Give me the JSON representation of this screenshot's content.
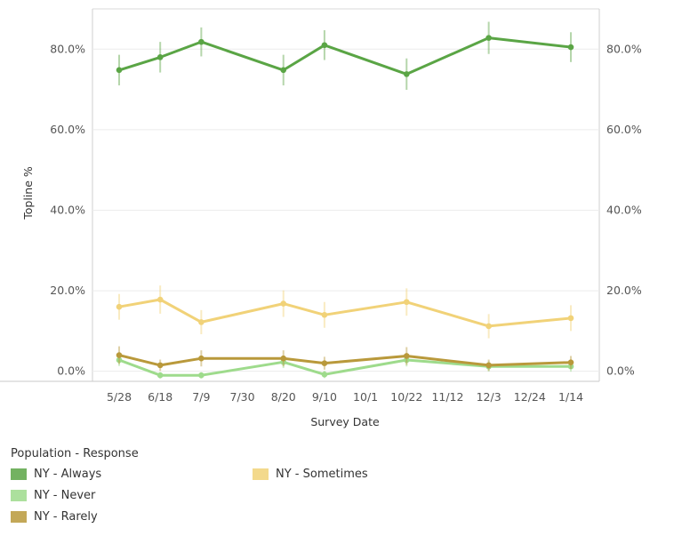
{
  "chart_data": {
    "type": "line",
    "x": [
      "5/28",
      "6/18",
      "7/9",
      "7/30",
      "8/20",
      "9/10",
      "10/1",
      "10/22",
      "11/12",
      "12/3",
      "12/24",
      "1/14"
    ],
    "xlabel": "Survey Date",
    "ylabel": "Topline %",
    "ylim": [
      -2.5,
      90
    ],
    "yticks": [
      0,
      20,
      40,
      60,
      80
    ],
    "ytick_labels": [
      "0.0%",
      "20.0%",
      "40.0%",
      "60.0%",
      "80.0%"
    ],
    "grid": true,
    "legend_title": "Population - Response",
    "legend_position": "bottom",
    "series": [
      {
        "name": "NY - Always",
        "color": "#5aa545",
        "points": [
          {
            "x": "5/28",
            "y": 74.8,
            "err": 3.8
          },
          {
            "x": "6/18",
            "y": 78.0,
            "err": 3.8
          },
          {
            "x": "7/9",
            "y": 81.8,
            "err": 3.6
          },
          {
            "x": "8/20",
            "y": 74.8,
            "err": 3.8
          },
          {
            "x": "9/10",
            "y": 81.0,
            "err": 3.7
          },
          {
            "x": "10/22",
            "y": 73.8,
            "err": 3.9
          },
          {
            "x": "12/3",
            "y": 82.8,
            "err": 4.0
          },
          {
            "x": "1/14",
            "y": 80.5,
            "err": 3.7
          }
        ]
      },
      {
        "name": "NY - Never",
        "color": "#9edb8c",
        "points": [
          {
            "x": "5/28",
            "y": 2.8,
            "err": 1.5
          },
          {
            "x": "6/18",
            "y": -1.0,
            "err": 0.8
          },
          {
            "x": "7/9",
            "y": -1.0,
            "err": 0.8
          },
          {
            "x": "8/20",
            "y": 2.3,
            "err": 1.5
          },
          {
            "x": "9/10",
            "y": -0.8,
            "err": 0.9
          },
          {
            "x": "10/22",
            "y": 2.8,
            "err": 1.6
          },
          {
            "x": "12/3",
            "y": 1.2,
            "err": 1.3
          },
          {
            "x": "1/14",
            "y": 1.2,
            "err": 1.3
          }
        ]
      },
      {
        "name": "NY - Rarely",
        "color": "#b9993b",
        "points": [
          {
            "x": "5/28",
            "y": 4.0,
            "err": 2.2
          },
          {
            "x": "6/18",
            "y": 1.5,
            "err": 1.4
          },
          {
            "x": "7/9",
            "y": 3.2,
            "err": 2.0
          },
          {
            "x": "8/20",
            "y": 3.2,
            "err": 2.0
          },
          {
            "x": "9/10",
            "y": 2.0,
            "err": 1.6
          },
          {
            "x": "10/22",
            "y": 3.8,
            "err": 2.2
          },
          {
            "x": "12/3",
            "y": 1.5,
            "err": 1.4
          },
          {
            "x": "1/14",
            "y": 2.2,
            "err": 1.6
          }
        ]
      },
      {
        "name": "NY - Sometimes",
        "color": "#f1d278",
        "points": [
          {
            "x": "5/28",
            "y": 16.0,
            "err": 3.2
          },
          {
            "x": "6/18",
            "y": 17.8,
            "err": 3.5
          },
          {
            "x": "7/9",
            "y": 12.2,
            "err": 3.0
          },
          {
            "x": "8/20",
            "y": 16.8,
            "err": 3.3
          },
          {
            "x": "9/10",
            "y": 14.0,
            "err": 3.2
          },
          {
            "x": "10/22",
            "y": 17.2,
            "err": 3.4
          },
          {
            "x": "12/3",
            "y": 11.2,
            "err": 3.0
          },
          {
            "x": "1/14",
            "y": 13.2,
            "err": 3.2
          }
        ]
      }
    ]
  }
}
